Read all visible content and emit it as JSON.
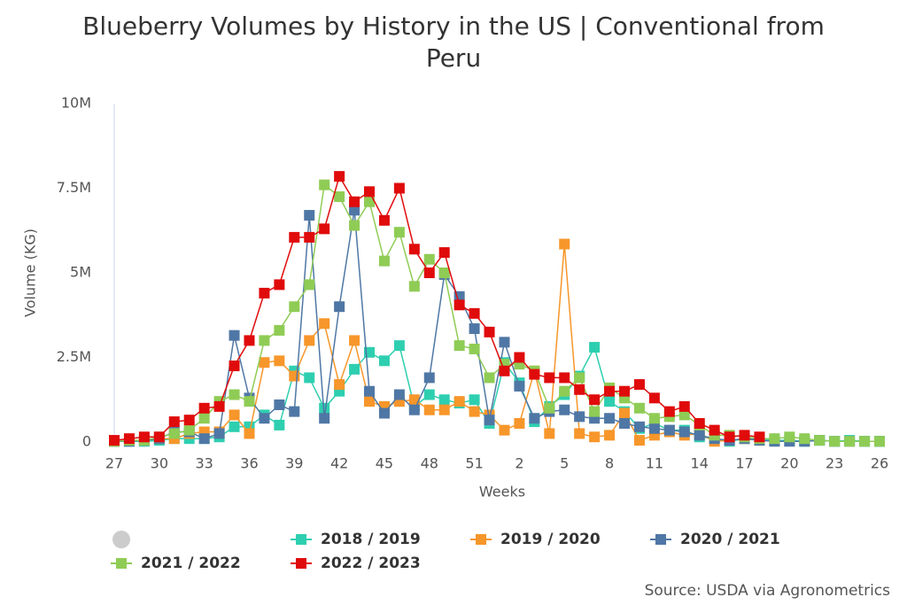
{
  "chart_data": {
    "type": "line",
    "title": "Blueberry Volumes by History in the US | Conventional from Peru",
    "x_label": "Weeks",
    "y_label": "Volume (KG)",
    "source": "Source: USDA via Agronometrics",
    "categories": [
      "27",
      null,
      null,
      "30",
      null,
      null,
      "33",
      null,
      null,
      "36",
      null,
      null,
      "39",
      null,
      null,
      "42",
      null,
      null,
      "45",
      null,
      null,
      "48",
      null,
      null,
      "51",
      null,
      null,
      "2",
      null,
      null,
      "5",
      null,
      null,
      "8",
      null,
      null,
      "11",
      null,
      null,
      "14",
      null,
      null,
      "17",
      null,
      null,
      "20",
      null,
      null,
      "23",
      null,
      null,
      "26"
    ],
    "ylim": [
      0,
      10000000
    ],
    "yticks": [
      0,
      {
        "value": 2500000,
        "label": "2.5M"
      },
      {
        "value": 5000000,
        "label": "5M"
      },
      {
        "value": 7500000,
        "label": "7.5M"
      },
      {
        "value": 10000000,
        "label": "10M"
      }
    ],
    "grid": false,
    "series": [
      {
        "name": "2018 / 2019",
        "color": "#2ecfb0",
        "values": [
          20000,
          20000,
          20000,
          50000,
          100000,
          100000,
          100000,
          150000,
          450000,
          450000,
          800000,
          500000,
          2100000,
          1900000,
          1000000,
          1500000,
          2150000,
          2650000,
          2400000,
          2850000,
          1050000,
          1400000,
          1250000,
          1150000,
          1250000,
          550000,
          2350000,
          1750000,
          600000,
          1050000,
          1400000,
          1950000,
          2800000,
          1200000,
          900000,
          400000,
          550000,
          350000,
          350000,
          150000,
          100000,
          20000,
          100000,
          100000,
          50000,
          50000,
          20000,
          50000,
          20000,
          50000,
          20000,
          20000
        ]
      },
      {
        "name": "2019 / 2020",
        "color": "#f7962a",
        "values": [
          20000,
          50000,
          50000,
          100000,
          100000,
          250000,
          300000,
          300000,
          800000,
          250000,
          2350000,
          2400000,
          1950000,
          3000000,
          3500000,
          1700000,
          3000000,
          1200000,
          1050000,
          1200000,
          1250000,
          950000,
          950000,
          1200000,
          900000,
          800000,
          350000,
          550000,
          2100000,
          250000,
          5850000,
          250000,
          150000,
          200000,
          850000,
          50000,
          200000,
          300000,
          200000,
          250000,
          20000,
          50000,
          100000,
          50000,
          null,
          null,
          null,
          null,
          null,
          null,
          null,
          null
        ]
      },
      {
        "name": "2020 / 2021",
        "color": "#4f77a5",
        "values": [
          20000,
          20000,
          50000,
          100000,
          300000,
          300000,
          100000,
          250000,
          3150000,
          1300000,
          700000,
          1100000,
          900000,
          6700000,
          700000,
          4000000,
          6850000,
          1500000,
          850000,
          1400000,
          950000,
          1900000,
          4950000,
          4300000,
          3350000,
          650000,
          2950000,
          1650000,
          700000,
          900000,
          950000,
          750000,
          700000,
          700000,
          550000,
          450000,
          400000,
          350000,
          300000,
          200000,
          100000,
          50000,
          100000,
          50000,
          20000,
          20000,
          20000,
          50000,
          20000,
          20000,
          20000,
          20000
        ]
      },
      {
        "name": "2021 / 2022",
        "color": "#8fcc55",
        "values": [
          20000,
          50000,
          50000,
          150000,
          250000,
          350000,
          700000,
          1200000,
          1400000,
          1200000,
          3000000,
          3300000,
          4000000,
          4650000,
          7600000,
          7250000,
          6400000,
          7100000,
          5350000,
          6200000,
          4600000,
          5400000,
          5000000,
          2850000,
          2750000,
          1900000,
          2300000,
          2300000,
          2100000,
          1000000,
          1500000,
          1900000,
          900000,
          1600000,
          1300000,
          1000000,
          700000,
          750000,
          800000,
          500000,
          200000,
          200000,
          150000,
          100000,
          100000,
          150000,
          100000,
          50000,
          20000,
          20000,
          20000,
          20000
        ]
      },
      {
        "name": "2022 / 2023",
        "color": "#e00b0b",
        "values": [
          50000,
          100000,
          150000,
          150000,
          600000,
          650000,
          1000000,
          1050000,
          2250000,
          3000000,
          4400000,
          4650000,
          6050000,
          6050000,
          6300000,
          7850000,
          7100000,
          7400000,
          6550000,
          7500000,
          5700000,
          5000000,
          5600000,
          4050000,
          3800000,
          3250000,
          2100000,
          2500000,
          2000000,
          1900000,
          1900000,
          1550000,
          1250000,
          1500000,
          1500000,
          1700000,
          1300000,
          900000,
          1050000,
          550000,
          350000,
          150000,
          200000,
          150000,
          null,
          null,
          null,
          null,
          null,
          null,
          null,
          null
        ]
      }
    ]
  }
}
